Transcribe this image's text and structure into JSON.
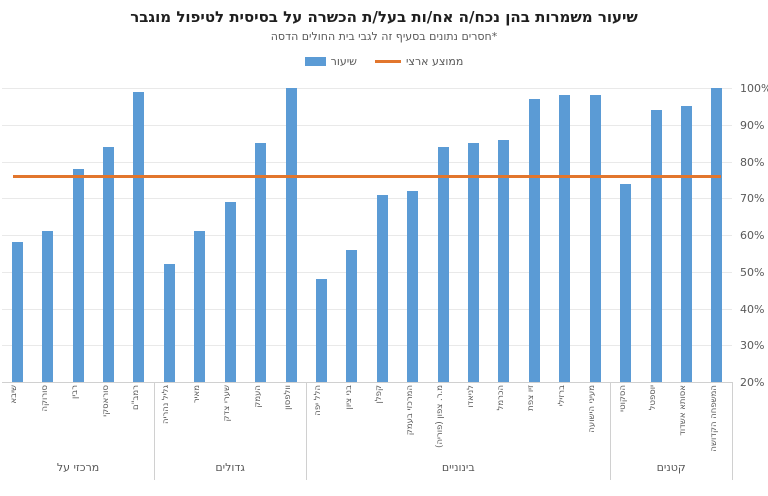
{
  "header": {
    "title": "שיעור משמרות בהן נכח/ה אח/ות בעל/ת הכשרה על בסיסית לטיפול מוגבר",
    "subtitle": "*חסרים נתונים בסעיף זה לגבי בית החולים הדסה"
  },
  "legend": {
    "series_label": "שיעור",
    "average_label": "ממוצע ארצי"
  },
  "colors": {
    "bar": "#5b9bd5",
    "average_line": "#e2762d",
    "grid": "#e9e9e9",
    "axis": "#d0d0d0",
    "text_muted": "#595959",
    "title_text": "#1f1f1f"
  },
  "chart_data": {
    "type": "bar",
    "title": "שיעור משמרות בהן נכח/ה אח/ות בעל/ת הכשרה על בסיסית לטיפול מוגבר",
    "subtitle": "*חסרים נתונים בסעיף זה לגבי בית החולים הדסה",
    "legend_entries": [
      "שיעור",
      "ממוצע ארצי"
    ],
    "legend_position": "top",
    "grid": true,
    "ylabel": "",
    "xlabel": "",
    "ylim": [
      20,
      100
    ],
    "y_tick_labels": [
      "100%",
      "90%",
      "80%",
      "70%",
      "60%",
      "50%",
      "40%",
      "30%",
      "20%"
    ],
    "average_value": 76,
    "groups": [
      {
        "label": "מרכזי על",
        "bars": [
          {
            "name": "שיבא",
            "value": 58
          },
          {
            "name": "סורוקה",
            "value": 61
          },
          {
            "name": "רבין",
            "value": 78
          },
          {
            "name": "סוראסקי",
            "value": 84
          },
          {
            "name": "רמב\"ם",
            "value": 99
          }
        ]
      },
      {
        "label": "גדולים",
        "bars": [
          {
            "name": "גליל נהריה",
            "value": 52
          },
          {
            "name": "מאיר",
            "value": 61
          },
          {
            "name": "שערי צדק",
            "value": 69
          },
          {
            "name": "העמק",
            "value": 85
          },
          {
            "name": "וולפסון",
            "value": 100
          }
        ]
      },
      {
        "label": "בינוניים",
        "bars": [
          {
            "name": "הלל יפה",
            "value": 48
          },
          {
            "name": "בני ציון",
            "value": 56
          },
          {
            "name": "קפלן",
            "value": 71
          },
          {
            "name": "המרכזי בעמק",
            "value": 72
          },
          {
            "name": "מ.ר. צפון (פוריה)",
            "value": 84
          },
          {
            "name": "לניאדו",
            "value": 85
          },
          {
            "name": "הכרמל",
            "value": 86
          },
          {
            "name": "זיו צפת",
            "value": 97
          },
          {
            "name": "ברזילי",
            "value": 98
          },
          {
            "name": "מעיני הישועה",
            "value": 98
          }
        ]
      },
      {
        "label": "קטנים",
        "bars": [
          {
            "name": "הסקוטי",
            "value": 74
          },
          {
            "name": "יוספטל",
            "value": 94
          },
          {
            "name": "אסותא אשדוד",
            "value": 95
          },
          {
            "name": "המשפחה הקדושה",
            "value": 100
          }
        ]
      }
    ]
  }
}
